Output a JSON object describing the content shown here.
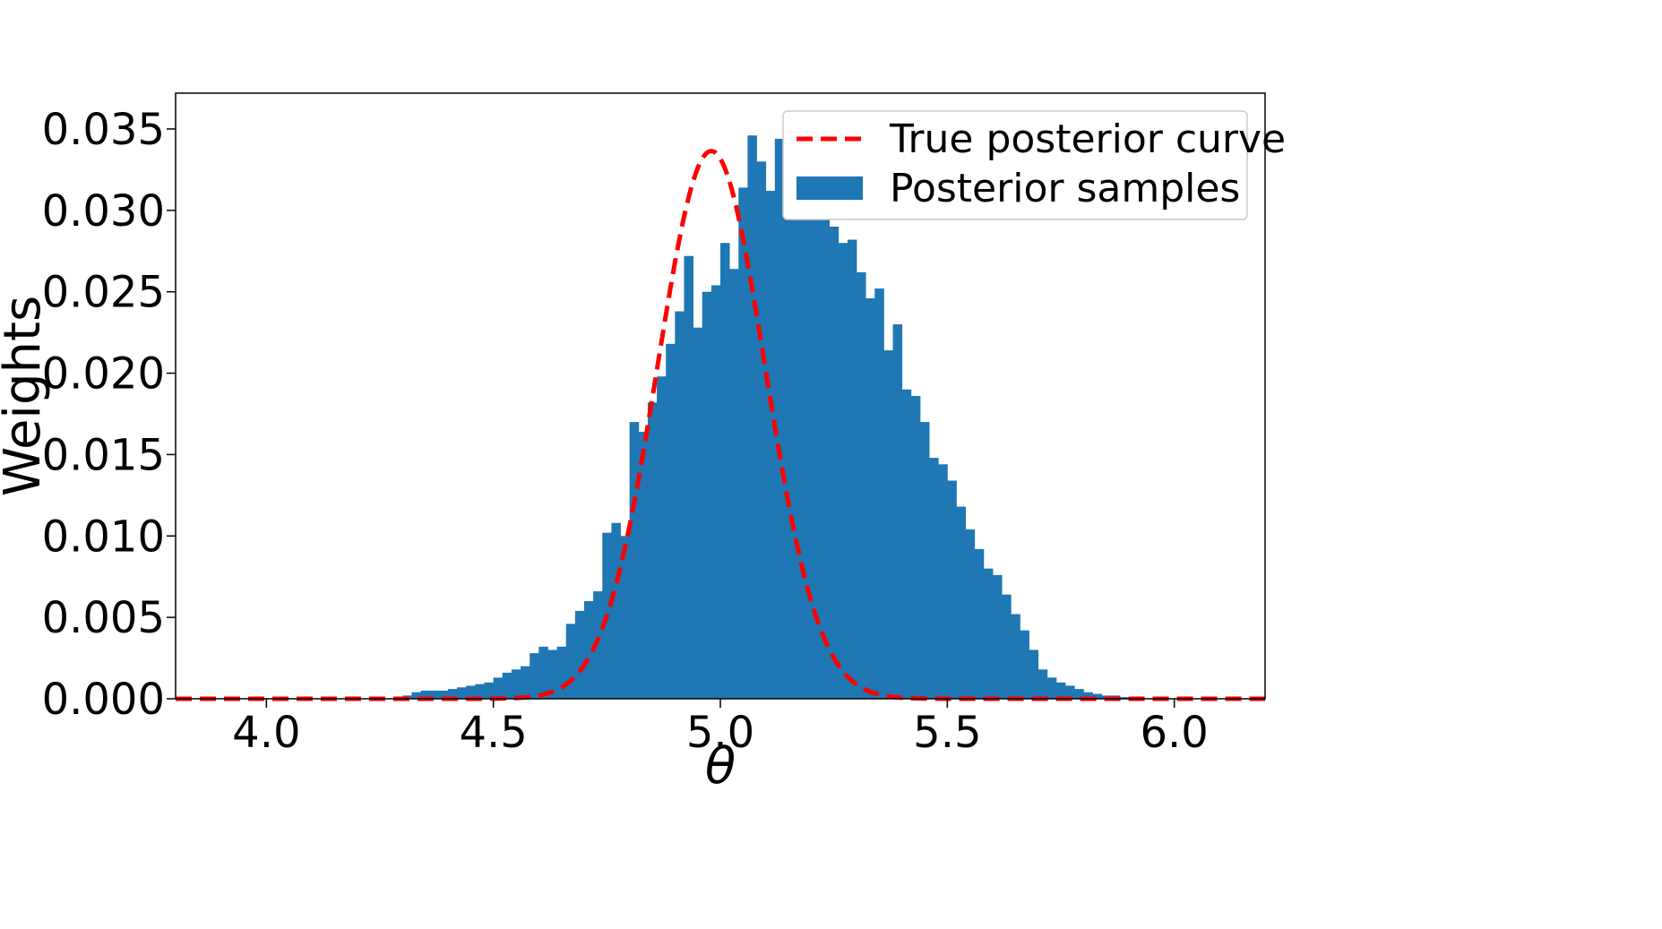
{
  "chart_data": {
    "type": "histogram",
    "xlabel": "θ",
    "ylabel": "Weights",
    "xlim": [
      3.8,
      6.2
    ],
    "ylim": [
      0.0,
      0.0372
    ],
    "x_ticks": [
      4.0,
      4.5,
      5.0,
      5.5,
      6.0
    ],
    "x_tick_labels": [
      "4.0",
      "4.5",
      "5.0",
      "5.5",
      "6.0"
    ],
    "y_ticks": [
      0.0,
      0.005,
      0.01,
      0.015,
      0.02,
      0.025,
      0.03,
      0.035
    ],
    "y_tick_labels": [
      "0.000",
      "0.005",
      "0.010",
      "0.015",
      "0.020",
      "0.025",
      "0.030",
      "0.035"
    ],
    "grid": false,
    "legend_position": "top-right",
    "legend": [
      "True posterior curve",
      "Posterior samples"
    ],
    "series": [
      {
        "name": "True posterior curve",
        "kind": "line",
        "style": "dashed",
        "color": "#ff0000",
        "mu": 4.98,
        "sigma": 0.1185,
        "peak": 0.03365
      },
      {
        "name": "Posterior samples",
        "kind": "bar",
        "color": "#1f77b4",
        "bin_start": 4.3,
        "bin_width": 0.02,
        "values": [
          0.0002,
          0.0004,
          0.0005,
          0.0005,
          0.0005,
          0.0006,
          0.0007,
          0.0008,
          0.0009,
          0.001,
          0.0013,
          0.0016,
          0.0018,
          0.002,
          0.0028,
          0.0032,
          0.003,
          0.0032,
          0.0046,
          0.0054,
          0.006,
          0.0066,
          0.0102,
          0.0108,
          0.01,
          0.017,
          0.0164,
          0.0182,
          0.0198,
          0.0218,
          0.0238,
          0.0272,
          0.0228,
          0.025,
          0.0254,
          0.028,
          0.0264,
          0.0314,
          0.0346,
          0.033,
          0.0312,
          0.0344,
          0.0316,
          0.0318,
          0.0322,
          0.0352,
          0.0304,
          0.029,
          0.028,
          0.0282,
          0.0262,
          0.0246,
          0.0252,
          0.0214,
          0.023,
          0.019,
          0.0186,
          0.017,
          0.0148,
          0.0144,
          0.0134,
          0.0118,
          0.0104,
          0.0092,
          0.008,
          0.0076,
          0.0064,
          0.0052,
          0.0042,
          0.003,
          0.0018,
          0.0013,
          0.001,
          0.0008,
          0.0006,
          0.0004,
          0.0003,
          0.0002,
          0.0002,
          0.0001
        ]
      }
    ]
  }
}
